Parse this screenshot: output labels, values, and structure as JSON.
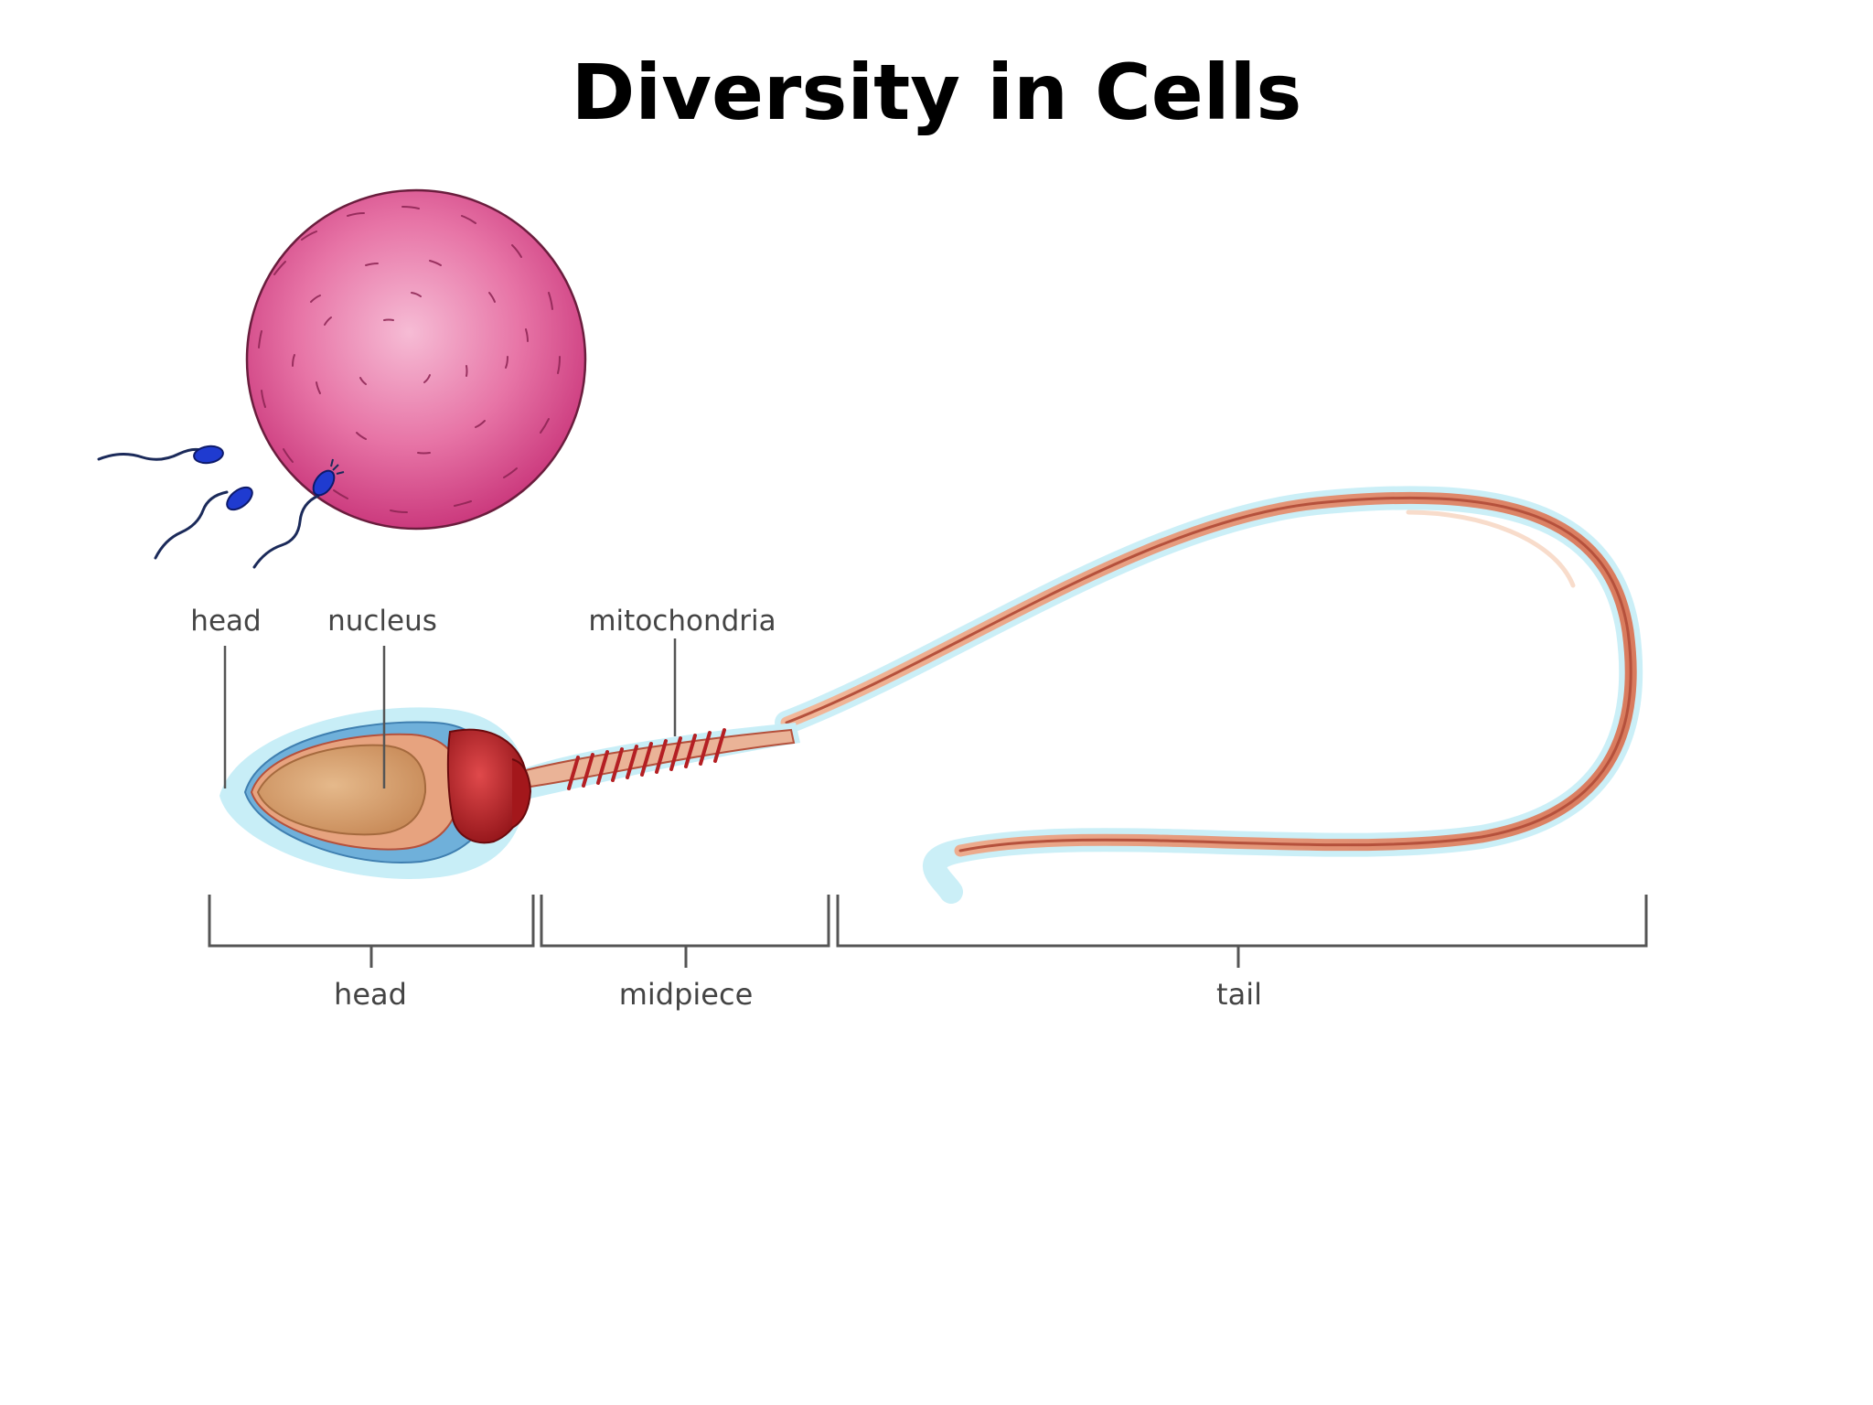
{
  "title": "Diversity in Cells",
  "diagram": {
    "top_labels": {
      "head": "head",
      "nucleus": "nucleus",
      "mitochondria": "mitochondria"
    },
    "bracket_labels": {
      "head": "head",
      "midpiece": "midpiece",
      "tail": "tail"
    }
  },
  "colors": {
    "egg": "#e0528f",
    "sperm_small": "#1f3bd0",
    "sperm_body": "#e7a37f",
    "sperm_outline": "#b5513c",
    "nucleus": "#d9a877",
    "acrosome": "#6fb0da",
    "halo": "#bfe8f4",
    "mitochondria": "#b41f23",
    "label_text": "#444444",
    "lines": "#555555"
  }
}
